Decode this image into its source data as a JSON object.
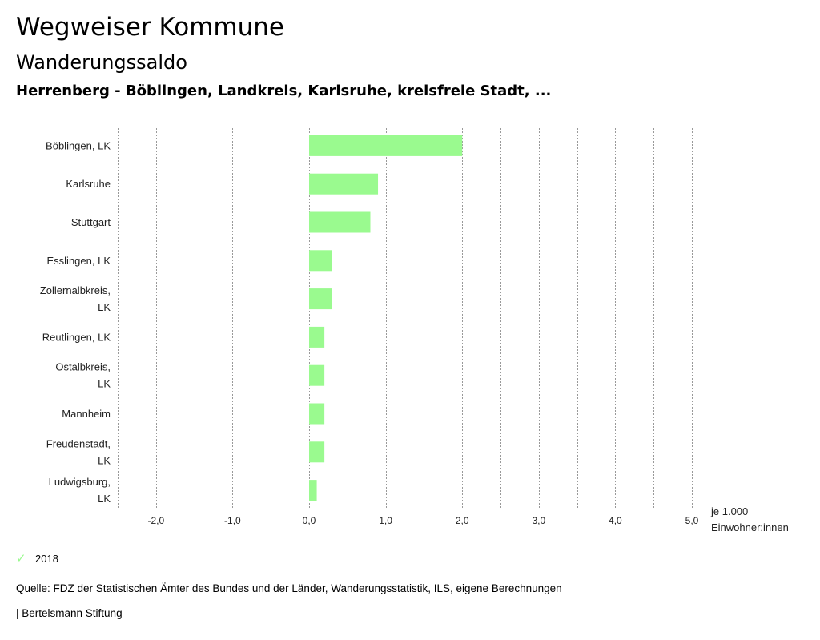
{
  "header": {
    "title": "Wegweiser Kommune",
    "subtitle": "Wanderungssaldo",
    "region": "Herrenberg - Böblingen, Landkreis, Karlsruhe, kreisfreie Stadt, ..."
  },
  "chart_data": {
    "type": "bar",
    "orientation": "horizontal",
    "categories": [
      [
        "Böblingen, LK"
      ],
      [
        "Karlsruhe"
      ],
      [
        "Stuttgart"
      ],
      [
        "Esslingen, LK"
      ],
      [
        "Zollernalbkreis,",
        "LK"
      ],
      [
        "Reutlingen, LK"
      ],
      [
        "Ostalbkreis,",
        "LK"
      ],
      [
        "Mannheim"
      ],
      [
        "Freudenstadt,",
        "LK"
      ],
      [
        "Ludwigsburg,",
        "LK"
      ]
    ],
    "series": [
      {
        "name": "2018",
        "values": [
          2.0,
          0.9,
          0.8,
          0.3,
          0.3,
          0.2,
          0.2,
          0.2,
          0.2,
          0.1
        ]
      }
    ],
    "xlim": [
      -2.5,
      5.0
    ],
    "xticks": [
      -2.0,
      -1.0,
      0.0,
      1.0,
      2.0,
      3.0,
      4.0,
      5.0
    ],
    "xtick_labels": [
      "-2,0",
      "-1,0",
      "0,0",
      "1,0",
      "2,0",
      "3,0",
      "4,0",
      "5,0"
    ],
    "unit_label": [
      "je 1.000",
      "Einwohner:innen"
    ],
    "grid": true,
    "legend": "bottom-left",
    "color": "#9afa8f"
  },
  "legend": {
    "label": "2018",
    "icon": "check-icon"
  },
  "footer": {
    "source": "Quelle: FDZ der Statistischen Ämter des Bundes und der Länder, Wanderungsstatistik, ILS, eigene Berechnungen",
    "credit": "| Bertelsmann Stiftung"
  }
}
